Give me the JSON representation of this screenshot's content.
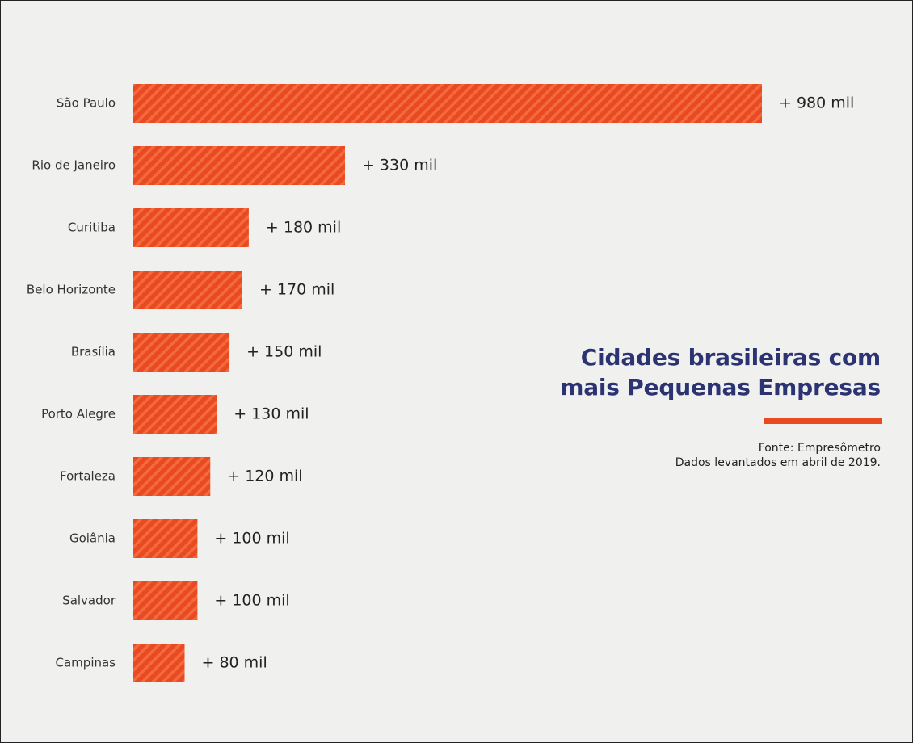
{
  "title_lines": [
    "Cidades brasileiras com",
    "mais Pequenas Empresas"
  ],
  "source_lines": [
    "Fonte: Empresômetro",
    "Dados levantados em abril de 2019."
  ],
  "colors": {
    "bar": "#ea4a21",
    "bar_stripe": "#f26a3d",
    "title": "#2b3373",
    "accent_rule": "#ea4a21",
    "background": "#f0f0ee"
  },
  "chart_data": {
    "type": "bar",
    "orientation": "horizontal",
    "title": "Cidades brasileiras com mais Pequenas Empresas",
    "categories": [
      "São Paulo",
      "Rio de Janeiro",
      "Curitiba",
      "Belo Horizonte",
      "Brasília",
      "Porto Alegre",
      "Fortaleza",
      "Goiânia",
      "Salvador",
      "Campinas"
    ],
    "values": [
      980,
      330,
      180,
      170,
      150,
      130,
      120,
      100,
      100,
      80
    ],
    "value_labels": [
      "+ 980 mil",
      "+ 330 mil",
      "+ 180 mil",
      "+ 170 mil",
      "+ 150 mil",
      "+ 130 mil",
      "+ 120 mil",
      "+ 100 mil",
      "+ 100 mil",
      "+ 80 mil"
    ],
    "unit": "mil",
    "xlabel": "",
    "ylabel": "",
    "xlim": [
      0,
      980
    ],
    "grid": false,
    "legend": "none",
    "pattern": "diagonal-stripes"
  }
}
